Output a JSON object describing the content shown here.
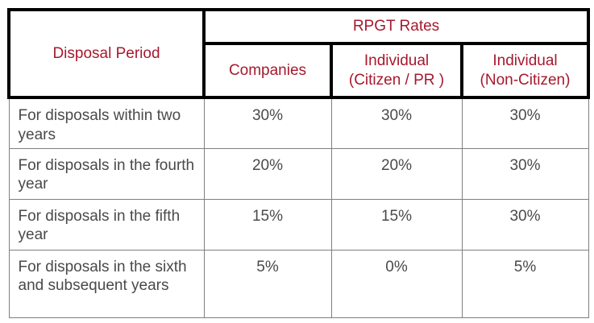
{
  "table": {
    "header": {
      "period_label": "Disposal Period",
      "group_label": "RPGT Rates",
      "columns": [
        "Companies",
        [
          "Individual",
          "(Citizen / PR )"
        ],
        [
          "Individual",
          "(Non-Citizen)"
        ]
      ]
    },
    "rows": [
      {
        "period": "For disposals within two years",
        "companies": "30%",
        "citizen_pr": "30%",
        "non_citizen": "30%"
      },
      {
        "period": "For disposals in the fourth year",
        "companies": "20%",
        "citizen_pr": "20%",
        "non_citizen": "30%"
      },
      {
        "period": "For disposals in the fifth year",
        "companies": "15%",
        "citizen_pr": "15%",
        "non_citizen": "30%"
      },
      {
        "period": "For disposals in the sixth and subsequent years",
        "companies": "5%",
        "citizen_pr": "0%",
        "non_citizen": "5%"
      }
    ]
  },
  "colors": {
    "header_text": "#a6192e",
    "body_text": "#4a4a4a",
    "header_border": "#000000",
    "body_border": "#7f7f7f"
  }
}
